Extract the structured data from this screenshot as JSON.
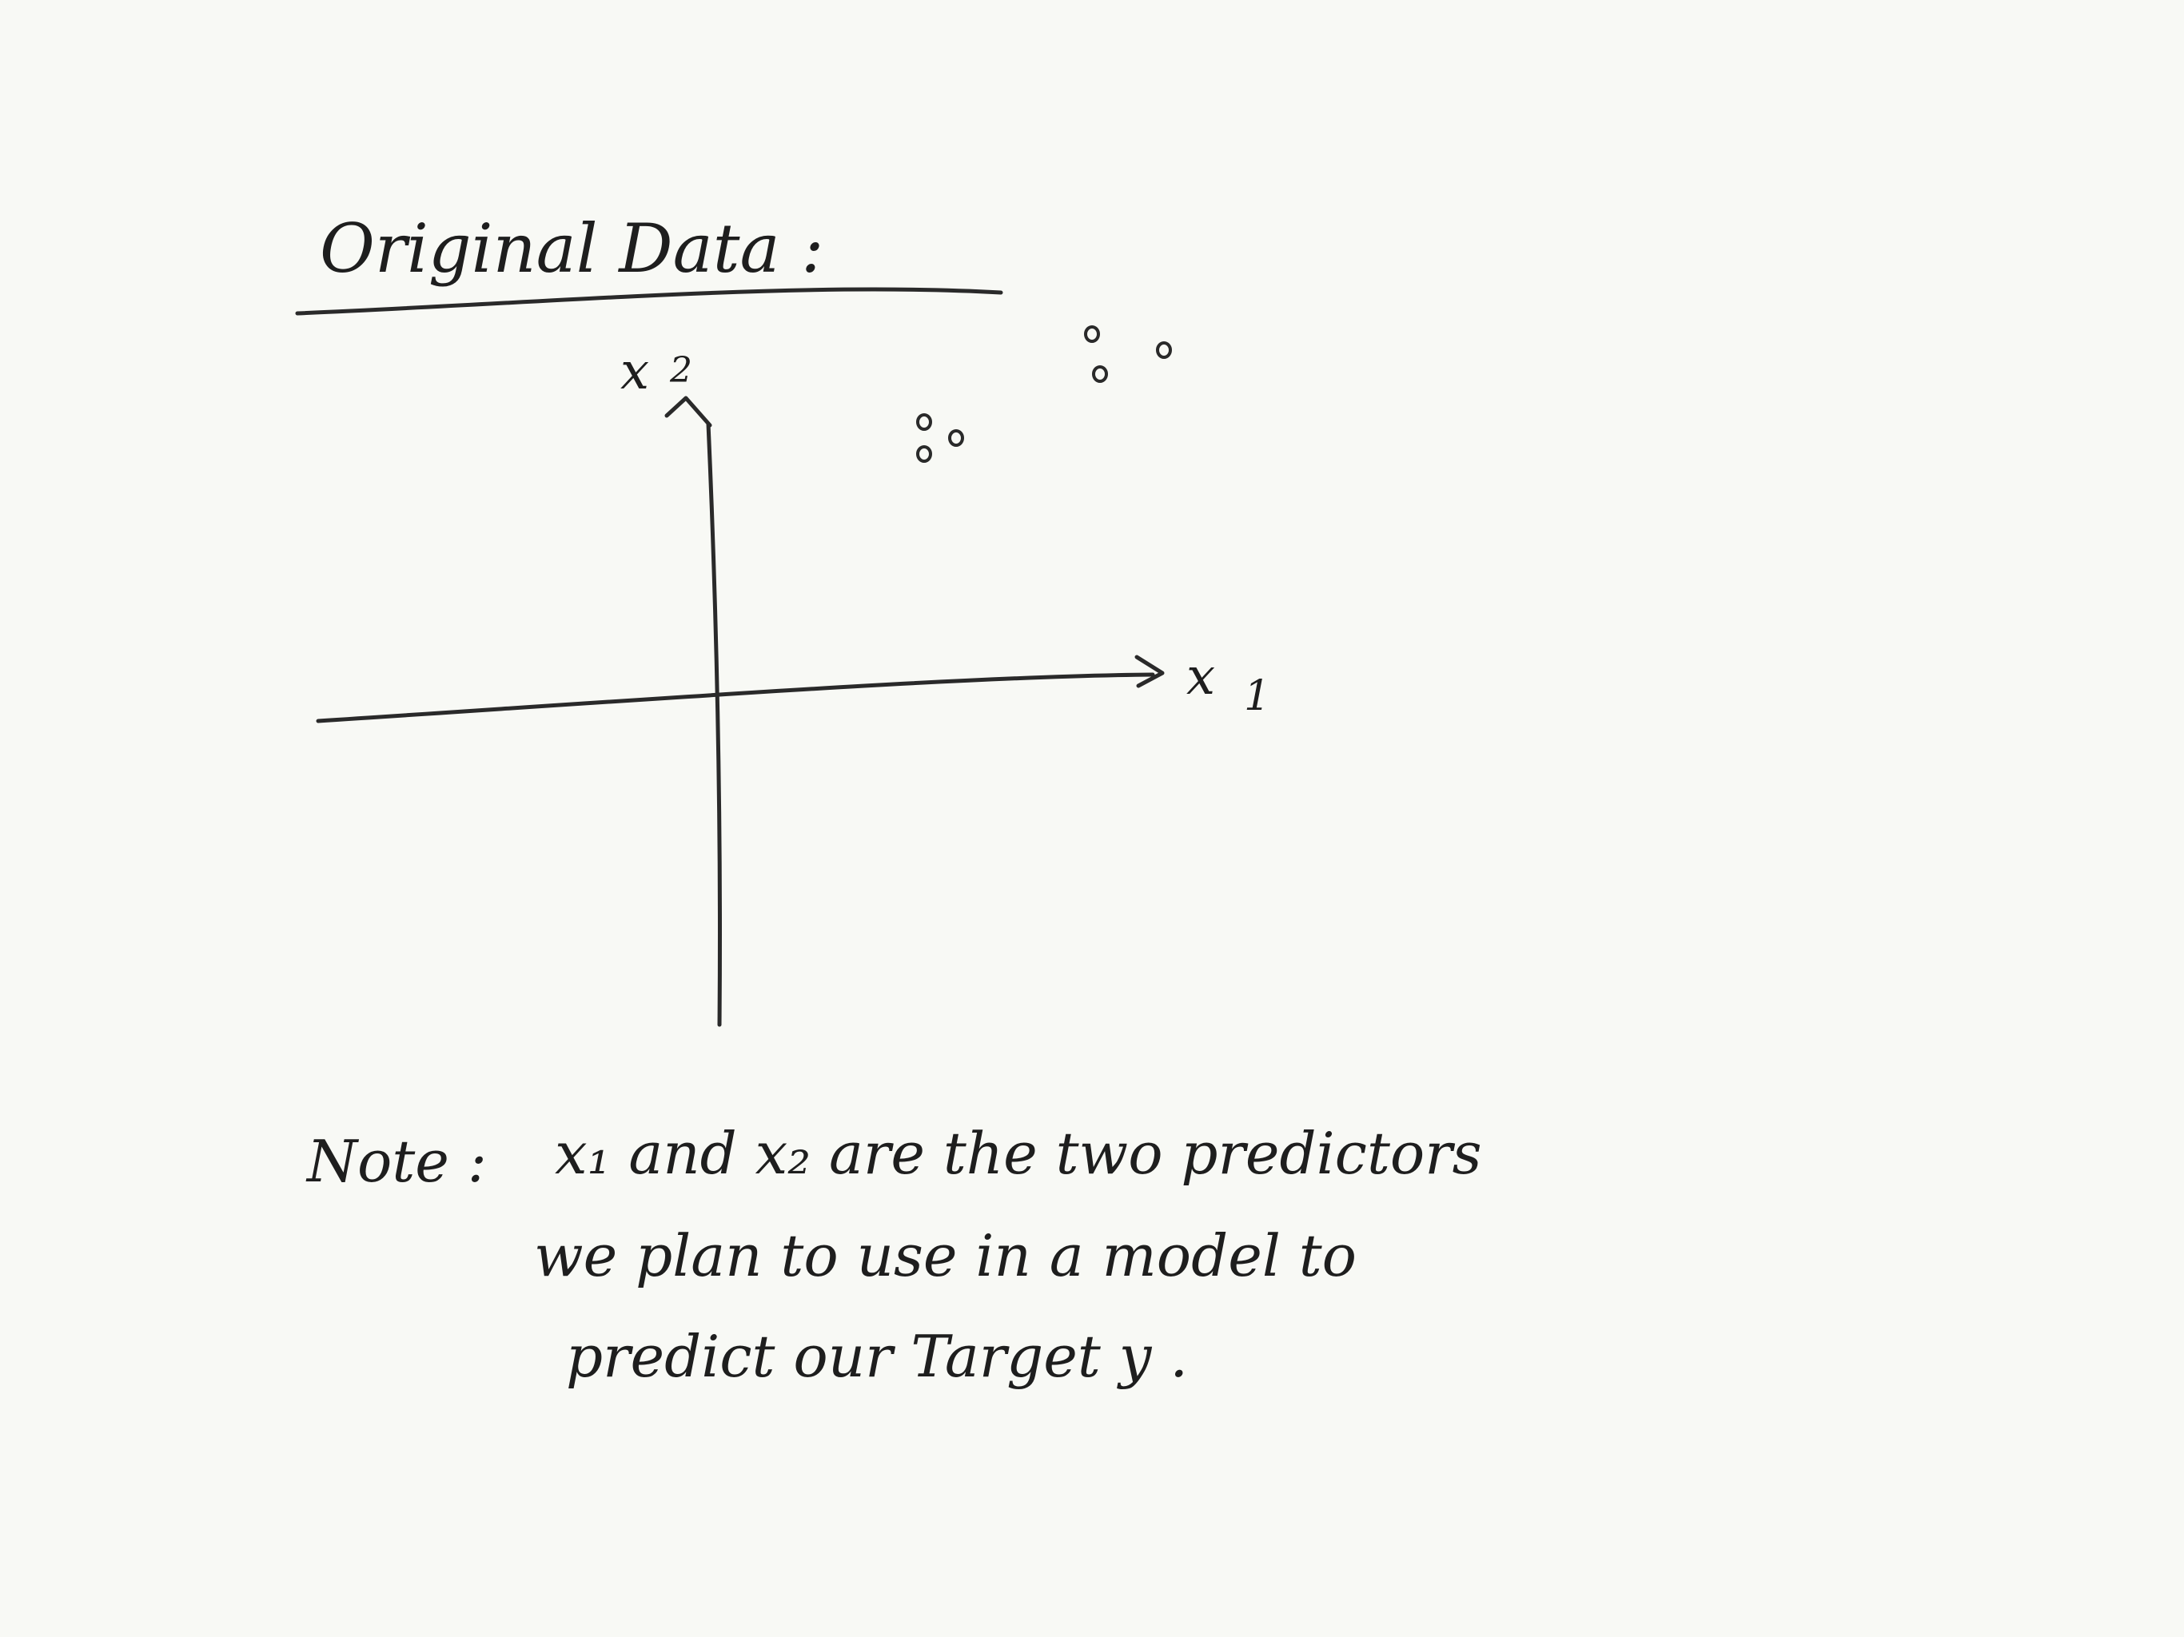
{
  "title": "Original Data :",
  "axes": {
    "x_label": "x",
    "x_subscript": "1",
    "y_label": "x",
    "y_subscript": "2"
  },
  "chart_data": {
    "type": "scatter",
    "title": "Original Data :",
    "xlabel": "x1",
    "ylabel": "x2",
    "grid": false,
    "series": [
      {
        "x": [
          2.6,
          2.6,
          3.0,
          4.7,
          4.8,
          5.6
        ],
        "y": [
          3.4,
          3.0,
          3.2,
          4.5,
          4.0,
          4.3
        ]
      }
    ]
  },
  "note": {
    "prefix": "Note :",
    "line1": "x₁  and  x₂  are  the  two  predictors",
    "line2": "we  plan  to  use  in  a  model  to",
    "line3": "predict  our  Target  y ."
  },
  "colors": {
    "background": "#f8f9f5",
    "ink": "#2a2a2a"
  }
}
